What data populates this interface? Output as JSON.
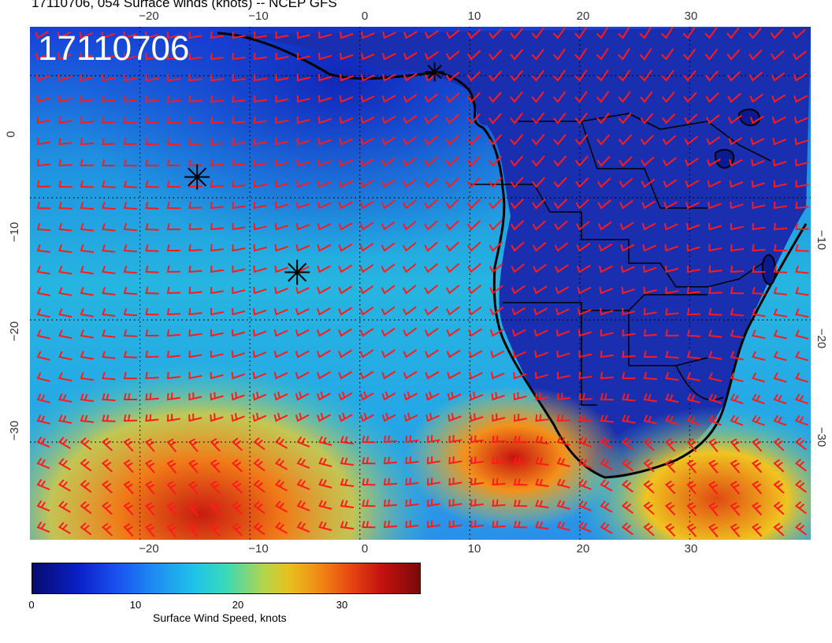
{
  "header": {
    "title": "17110706, 054 Surface winds (knots) -- NCEP GFS",
    "stamp": "17110706"
  },
  "axes": {
    "top_ticks": [
      "−20",
      "−10",
      "0",
      "10",
      "20",
      "30"
    ],
    "bottom_ticks": [
      "−20",
      "−10",
      "0",
      "10",
      "20",
      "30"
    ],
    "left_ticks": [
      "0",
      "−10",
      "−20",
      "−30"
    ],
    "right_ticks": [
      "−10",
      "−20",
      "−30"
    ]
  },
  "colorbar": {
    "label": "Surface Wind Speed, knots",
    "ticks": [
      "0",
      "10",
      "20",
      "30"
    ],
    "min": 0,
    "max": 36
  },
  "map": {
    "region": "South Atlantic / southern Africa",
    "lon_range": [
      -30,
      41
    ],
    "lat_range": [
      4,
      -38
    ],
    "wind_barb_color": "#ff1a1a",
    "coast_color": "#000000",
    "markers": [
      {
        "symbol": "asterisk",
        "lon": -14.8,
        "lat": -8.3
      },
      {
        "symbol": "asterisk",
        "lon": -5.7,
        "lat": -16.1
      },
      {
        "symbol": "asterisk",
        "lon": 6.8,
        "lat": 0.3
      }
    ]
  }
}
